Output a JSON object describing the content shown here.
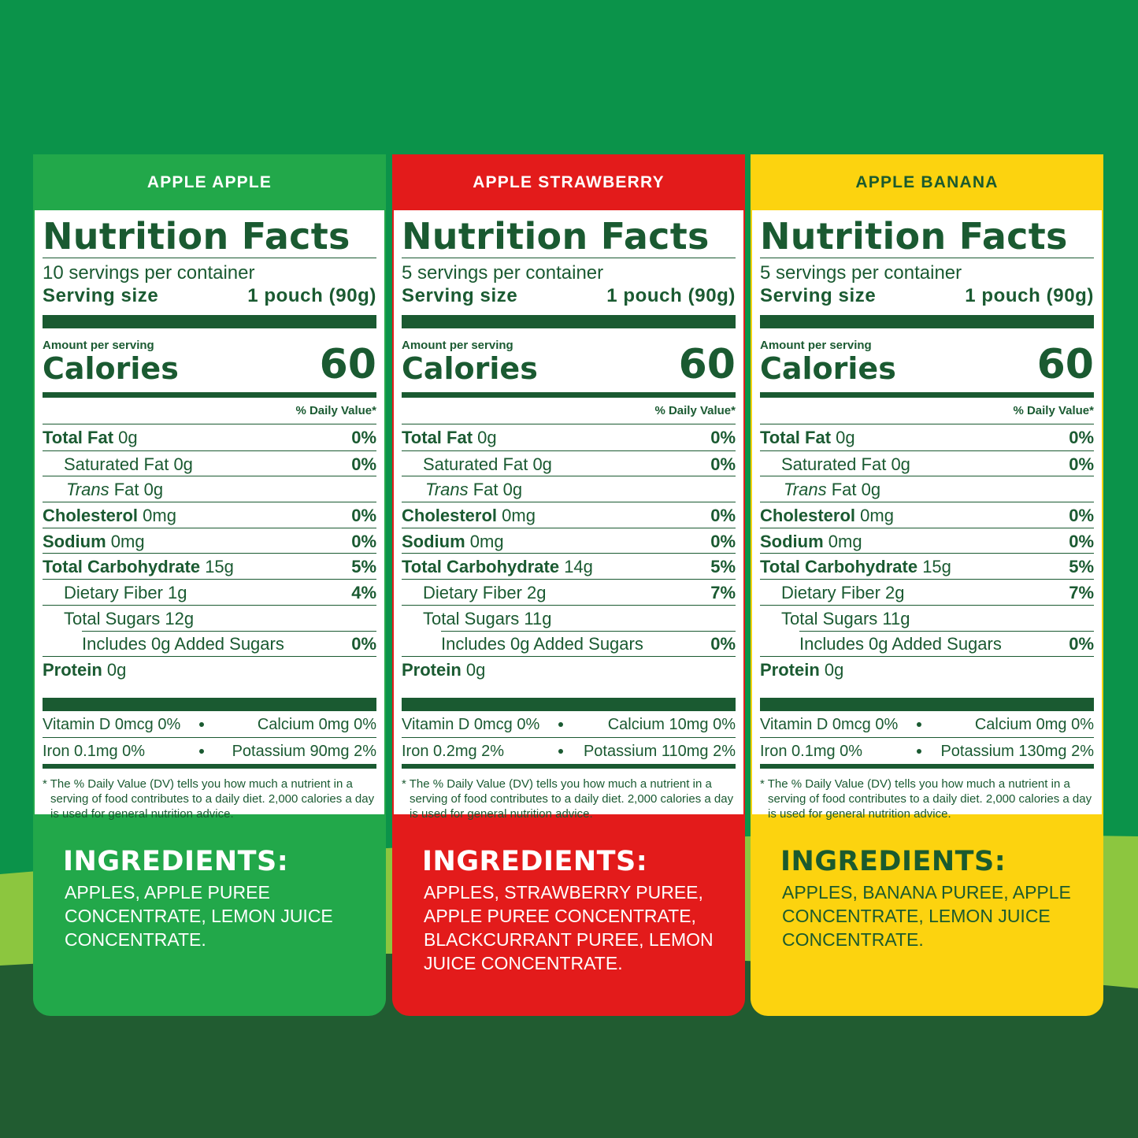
{
  "panels": [
    {
      "header": "APPLE APPLE",
      "color": "#22a84a",
      "text_color": "#ffffff",
      "title": "Nutrition Facts",
      "servings": "10 servings per container",
      "serving_size_label": "Serving size",
      "serving_size": "1 pouch (90g)",
      "amount_per_serving": "Amount per serving",
      "calories_label": "Calories",
      "calories": "60",
      "daily_value_header": "% Daily Value*",
      "rows": [
        {
          "label": "Total Fat",
          "amount": "0g",
          "dv": "0%"
        },
        {
          "label": "Saturated Fat",
          "amount": "0g",
          "dv": "0%"
        },
        {
          "label": "Trans",
          "amount": "Fat 0g"
        },
        {
          "label": "Cholesterol",
          "amount": "0mg",
          "dv": "0%"
        },
        {
          "label": "Sodium",
          "amount": "0mg",
          "dv": "0%"
        },
        {
          "label": "Total Carbohydrate",
          "amount": "15g",
          "dv": "5%"
        },
        {
          "label": "Dietary Fiber",
          "amount": "1g",
          "dv": "4%"
        },
        {
          "label": "Total Sugars",
          "amount": "12g"
        },
        {
          "label": "Includes 0g Added Sugars",
          "amount": "",
          "dv": "0%"
        },
        {
          "label": "Protein",
          "amount": "0g"
        }
      ],
      "minerals": [
        [
          "Vitamin D 0mcg 0%",
          "Calcium 0mg 0%"
        ],
        [
          "Iron 0.1mg 0%",
          "Potassium 90mg 2%"
        ]
      ],
      "footnote": "* The % Daily Value (DV) tells you how much a nutrient in a serving of food contributes to a daily diet. 2,000 calories a day is used for general nutrition advice.",
      "ingredients_heading": "INGREDIENTS:",
      "ingredients": "APPLES, APPLE PUREE CONCENTRATE, LEMON JUICE CONCENTRATE."
    },
    {
      "header": "APPLE STRAWBERRY",
      "color": "#e31b1b",
      "text_color": "#ffffff",
      "title": "Nutrition Facts",
      "servings": "5 servings per container",
      "serving_size_label": "Serving size",
      "serving_size": "1 pouch (90g)",
      "amount_per_serving": "Amount per serving",
      "calories_label": "Calories",
      "calories": "60",
      "daily_value_header": "% Daily Value*",
      "rows": [
        {
          "label": "Total Fat",
          "amount": "0g",
          "dv": "0%"
        },
        {
          "label": "Saturated Fat",
          "amount": "0g",
          "dv": "0%"
        },
        {
          "label": "Trans",
          "amount": "Fat 0g"
        },
        {
          "label": "Cholesterol",
          "amount": "0mg",
          "dv": "0%"
        },
        {
          "label": "Sodium",
          "amount": "0mg",
          "dv": "0%"
        },
        {
          "label": "Total Carbohydrate",
          "amount": "14g",
          "dv": "5%"
        },
        {
          "label": "Dietary Fiber",
          "amount": "2g",
          "dv": "7%"
        },
        {
          "label": "Total Sugars",
          "amount": "11g"
        },
        {
          "label": "Includes 0g Added Sugars",
          "amount": "",
          "dv": "0%"
        },
        {
          "label": "Protein",
          "amount": "0g"
        }
      ],
      "minerals": [
        [
          "Vitamin D 0mcg 0%",
          "Calcium 10mg 0%"
        ],
        [
          "Iron 0.2mg 2%",
          "Potassium 110mg 2%"
        ]
      ],
      "footnote": "* The % Daily Value (DV) tells you how much a nutrient in a serving of food contributes to a daily diet. 2,000 calories a day is used for general nutrition advice.",
      "ingredients_heading": "INGREDIENTS:",
      "ingredients": "APPLES, STRAWBERRY PUREE, APPLE PUREE CONCENTRATE, BLACKCURRANT PUREE, LEMON JUICE CONCENTRATE."
    },
    {
      "header": "APPLE BANANA",
      "color": "#fcd30f",
      "text_color": "#1b5a2e",
      "title": "Nutrition Facts",
      "servings": "5 servings per container",
      "serving_size_label": "Serving size",
      "serving_size": "1 pouch (90g)",
      "amount_per_serving": "Amount per serving",
      "calories_label": "Calories",
      "calories": "60",
      "daily_value_header": "% Daily Value*",
      "rows": [
        {
          "label": "Total Fat",
          "amount": "0g",
          "dv": "0%"
        },
        {
          "label": "Saturated Fat",
          "amount": "0g",
          "dv": "0%"
        },
        {
          "label": "Trans",
          "amount": "Fat 0g"
        },
        {
          "label": "Cholesterol",
          "amount": "0mg",
          "dv": "0%"
        },
        {
          "label": "Sodium",
          "amount": "0mg",
          "dv": "0%"
        },
        {
          "label": "Total Carbohydrate",
          "amount": "15g",
          "dv": "5%"
        },
        {
          "label": "Dietary Fiber",
          "amount": "2g",
          "dv": "7%"
        },
        {
          "label": "Total Sugars",
          "amount": "11g"
        },
        {
          "label": "Includes 0g Added Sugars",
          "amount": "",
          "dv": "0%"
        },
        {
          "label": "Protein",
          "amount": "0g"
        }
      ],
      "minerals": [
        [
          "Vitamin D 0mcg 0%",
          "Calcium 0mg 0%"
        ],
        [
          "Iron 0.1mg 0%",
          "Potassium 130mg 2%"
        ]
      ],
      "footnote": "* The % Daily Value (DV) tells you how much a nutrient in a serving of food contributes to a daily diet. 2,000 calories a day is used for general nutrition advice.",
      "ingredients_heading": "INGREDIENTS:",
      "ingredients": "APPLES, BANANA PUREE, APPLE CONCENTRATE, LEMON JUICE CONCENTRATE."
    }
  ]
}
